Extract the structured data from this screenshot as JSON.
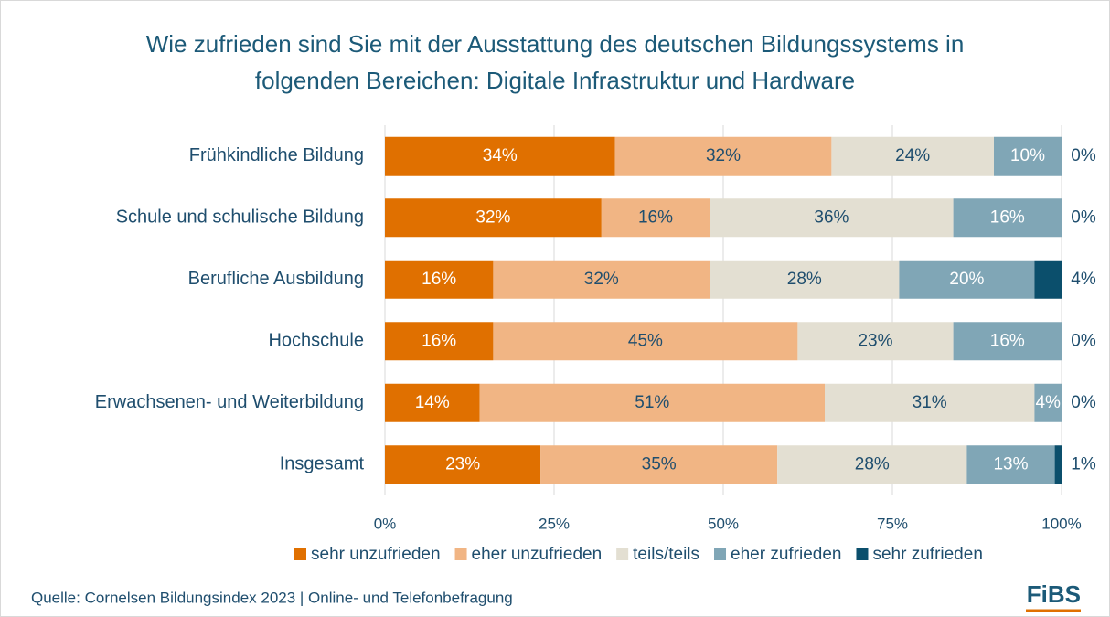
{
  "chart_data": {
    "type": "stacked_bar_horizontal",
    "title": "Wie zufrieden sind Sie mit der Ausstattung des deutschen Bildungssystems in folgenden Bereichen: Digitale Infrastruktur und Hardware",
    "categories": [
      "Frühkindliche Bildung",
      "Schule und schulische Bildung",
      "Berufliche Ausbildung",
      "Hochschule",
      "Erwachsenen- und Weiterbildung",
      "Insgesamt"
    ],
    "series": [
      {
        "name": "sehr unzufrieden",
        "color": "#e07000",
        "label_color": "#ffffff",
        "values": [
          34,
          32,
          16,
          16,
          14,
          23
        ],
        "value_labels": [
          "34%",
          "32%",
          "16%",
          "16%",
          "14%",
          "23%"
        ]
      },
      {
        "name": "eher unzufrieden",
        "color": "#f1b584",
        "label_color": "#1f4e6e",
        "values": [
          32,
          16,
          32,
          45,
          51,
          35
        ],
        "value_labels": [
          "32%",
          "16%",
          "32%",
          "45%",
          "51%",
          "35%"
        ]
      },
      {
        "name": "teils/teils",
        "color": "#e3dfd2",
        "label_color": "#1f4e6e",
        "values": [
          24,
          36,
          28,
          23,
          31,
          28
        ],
        "value_labels": [
          "24%",
          "36%",
          "28%",
          "23%",
          "31%",
          "28%"
        ]
      },
      {
        "name": "eher zufrieden",
        "color": "#80a6b6",
        "label_color": "#ffffff",
        "values": [
          10,
          16,
          20,
          16,
          4,
          13
        ],
        "value_labels": [
          "10%",
          "16%",
          "20%",
          "16%",
          "4%",
          "13%"
        ]
      },
      {
        "name": "sehr zufrieden",
        "color": "#0b4f6c",
        "label_color": "#1f4e6e",
        "values": [
          0,
          0,
          4,
          0,
          0,
          1
        ],
        "value_labels": [
          "0%",
          "0%",
          "4%",
          "0%",
          "0%",
          "1%"
        ]
      }
    ],
    "xlim": [
      0,
      100
    ],
    "xticks": [
      {
        "value": 0,
        "label": "0%"
      },
      {
        "value": 25,
        "label": "25%"
      },
      {
        "value": 50,
        "label": "50%"
      },
      {
        "value": 75,
        "label": "75%"
      },
      {
        "value": 100,
        "label": "100%"
      }
    ],
    "grid": true,
    "legend": "bottom",
    "source": "Quelle: Cornelsen Bildungsindex 2023 | Online- und Telefonbefragung",
    "logo": "FiBS"
  }
}
